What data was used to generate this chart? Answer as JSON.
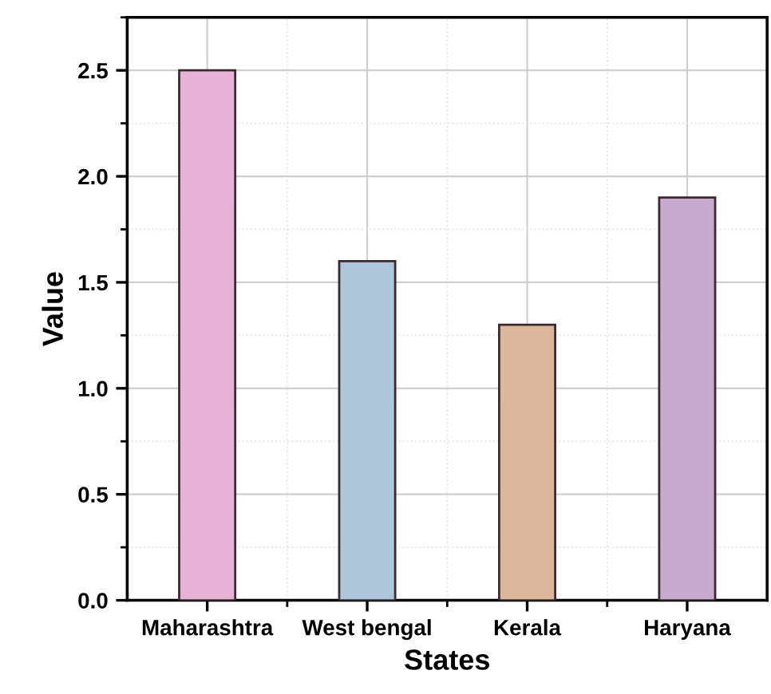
{
  "chart_data": {
    "type": "bar",
    "xlabel": "States",
    "ylabel": "Value",
    "categories": [
      "Maharashtra",
      "West bengal",
      "Kerala",
      "Haryana"
    ],
    "values": [
      2.5,
      1.6,
      1.3,
      1.9
    ],
    "colors": [
      "#e6b3d6",
      "#adc6dc",
      "#dcb59a",
      "#c8a9d0"
    ],
    "ylim": [
      0,
      2.75
    ],
    "yticks": [
      {
        "value": 0,
        "label": "0.0"
      },
      {
        "value": 0.5,
        "label": "0.5"
      },
      {
        "value": 1,
        "label": "1.0"
      },
      {
        "value": 1.5,
        "label": "1.5"
      },
      {
        "value": 2,
        "label": "2.0"
      },
      {
        "value": 2.5,
        "label": "2.5"
      }
    ],
    "grid": true
  }
}
